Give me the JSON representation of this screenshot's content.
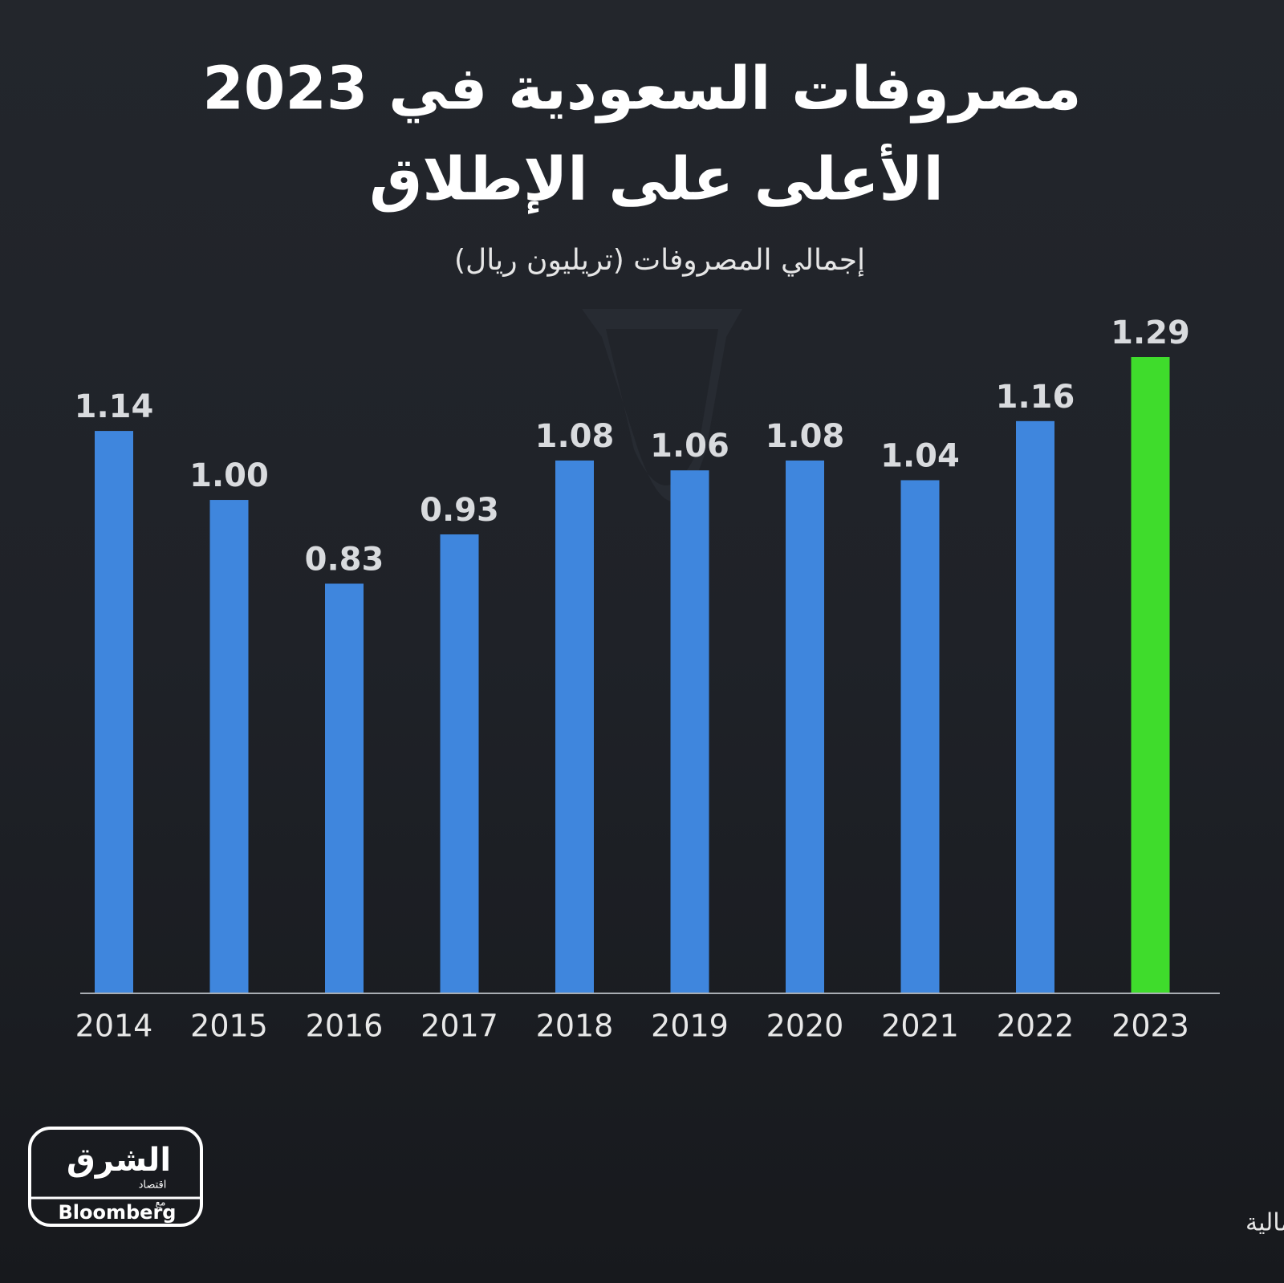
{
  "chart_data": {
    "type": "bar",
    "title": [
      "مصروفات السعودية في 2023",
      "الأعلى على الإطلاق"
    ],
    "subtitle": "إجمالي المصروفات (تريليون ريال)",
    "categories": [
      "2014",
      "2015",
      "2016",
      "2017",
      "2018",
      "2019",
      "2020",
      "2021",
      "2022",
      "2023"
    ],
    "values": [
      1.14,
      1.0,
      0.83,
      0.93,
      1.08,
      1.06,
      1.08,
      1.04,
      1.16,
      1.29
    ],
    "value_labels": [
      "1.14",
      "1.00",
      "0.83",
      "0.93",
      "1.08",
      "1.06",
      "1.08",
      "1.04",
      "1.16",
      "1.29"
    ],
    "colors": [
      "#3f86dd",
      "#3f86dd",
      "#3f86dd",
      "#3f86dd",
      "#3f86dd",
      "#3f86dd",
      "#3f86dd",
      "#3f86dd",
      "#3f86dd",
      "#3fdc2c"
    ],
    "ylim": [
      0,
      1.29
    ],
    "source": "المصدر: بيانات وزارة المالية"
  },
  "logo": {
    "name": "الشرق",
    "sub": "اقتصاد",
    "with": "مع",
    "partner": "Bloomberg"
  }
}
